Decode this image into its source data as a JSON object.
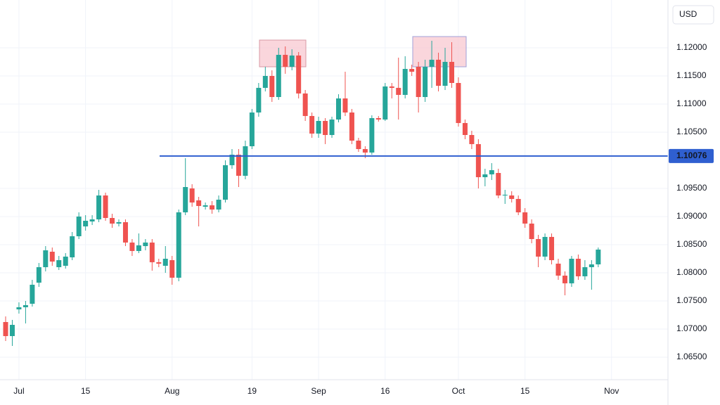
{
  "chart_data": {
    "type": "candlestick",
    "currency": "USD",
    "up_color": "#26a69a",
    "down_color": "#ef5350",
    "grid": true,
    "ylim": [
      1.061,
      1.1285
    ],
    "yticks": [
      {
        "value": 1.065,
        "label": "1.06500"
      },
      {
        "value": 1.07,
        "label": "1.07000"
      },
      {
        "value": 1.075,
        "label": "1.07500"
      },
      {
        "value": 1.08,
        "label": "1.08000"
      },
      {
        "value": 1.085,
        "label": "1.08500"
      },
      {
        "value": 1.09,
        "label": "1.09000"
      },
      {
        "value": 1.095,
        "label": "1.09500"
      },
      {
        "value": 1.105,
        "label": "1.10500"
      },
      {
        "value": 1.11,
        "label": "1.11000"
      },
      {
        "value": 1.115,
        "label": "1.11500"
      },
      {
        "value": 1.12,
        "label": "1.12000"
      }
    ],
    "level": {
      "value": 1.10076,
      "label": "1.10076",
      "color": "#2f5fd0"
    },
    "categories": [
      null,
      null,
      "Jul",
      null,
      null,
      null,
      null,
      null,
      null,
      null,
      null,
      null,
      "15",
      null,
      null,
      null,
      null,
      null,
      null,
      null,
      null,
      null,
      null,
      null,
      null,
      "Aug",
      null,
      null,
      null,
      null,
      null,
      null,
      null,
      null,
      null,
      null,
      null,
      "19",
      null,
      null,
      null,
      null,
      null,
      null,
      null,
      null,
      null,
      "Sep",
      null,
      null,
      null,
      null,
      null,
      null,
      null,
      null,
      null,
      "16",
      null,
      null,
      null,
      null,
      null,
      null,
      null,
      null,
      null,
      null,
      "Oct",
      null,
      null,
      null,
      null,
      null,
      null,
      null,
      null,
      null,
      "15",
      null,
      null,
      null,
      null,
      null,
      null,
      null,
      null,
      null,
      null,
      null,
      null,
      "Nov"
    ],
    "open": [
      1.07125,
      1.06875,
      1.0735,
      1.07388,
      1.0745,
      1.07825,
      1.081,
      1.08375,
      1.081,
      1.08125,
      1.08275,
      1.0865,
      1.08825,
      1.08913,
      1.0895,
      1.09375,
      1.08975,
      1.08875,
      1.089,
      1.08538,
      1.08388,
      1.08475,
      1.08538,
      1.08188,
      1.08125,
      1.08225,
      1.07913,
      1.09075,
      1.095,
      1.09288,
      1.09175,
      1.092,
      1.09125,
      1.093,
      1.09913,
      1.101,
      1.09725,
      1.1025,
      1.1085,
      1.11288,
      1.115,
      1.11125,
      1.11875,
      1.11663,
      1.11863,
      1.11188,
      1.10788,
      1.10475,
      1.107,
      1.1045,
      1.10725,
      1.111,
      1.1085,
      1.1035,
      1.102,
      1.10138,
      1.1075,
      1.10725,
      1.11313,
      1.11288,
      1.11163,
      1.11625,
      1.11663,
      1.11125,
      1.11663,
      1.11788,
      1.11325,
      1.1175,
      1.11375,
      1.10663,
      1.1045,
      1.10288,
      1.097,
      1.0975,
      1.09775,
      1.09375,
      1.09375,
      1.09313,
      1.09075,
      1.08875,
      1.086,
      1.08288,
      1.08638,
      1.08163,
      1.0795,
      1.07813,
      1.0825,
      1.07938,
      1.081,
      1.0815,
      null,
      null
    ],
    "high": [
      1.07225,
      1.07163,
      1.07475,
      1.075,
      1.07875,
      1.08175,
      1.08475,
      1.0845,
      1.083,
      1.0835,
      1.08725,
      1.09075,
      1.09025,
      1.09025,
      1.09475,
      1.09425,
      1.0905,
      1.0895,
      1.0895,
      1.086,
      1.087,
      1.086,
      1.086,
      1.0825,
      1.08475,
      1.083,
      1.09125,
      1.10038,
      1.09575,
      1.0935,
      1.0925,
      1.09275,
      1.09375,
      1.1,
      1.102,
      1.102,
      1.1035,
      1.10913,
      1.11375,
      1.11663,
      1.116,
      1.12,
      1.12025,
      1.11975,
      1.11925,
      1.1125,
      1.1085,
      1.10775,
      1.1075,
      1.10775,
      1.11175,
      1.11575,
      1.10913,
      1.104,
      1.1025,
      1.108,
      1.10788,
      1.11375,
      1.11375,
      1.11825,
      1.1185,
      1.117,
      1.1175,
      1.11788,
      1.12125,
      1.11913,
      1.12,
      1.121,
      1.11475,
      1.10725,
      1.10525,
      1.10375,
      1.0985,
      1.0995,
      1.0985,
      1.09475,
      1.0945,
      1.09375,
      1.0915,
      1.0895,
      1.08675,
      1.087,
      1.087,
      1.0825,
      1.08025,
      1.083,
      1.08325,
      1.08225,
      1.08225,
      1.0845,
      null,
      null
    ],
    "low": [
      1.06788,
      1.067,
      1.07275,
      1.071,
      1.074,
      1.0775,
      1.08025,
      1.08125,
      1.0805,
      1.08075,
      1.08225,
      1.086,
      1.0875,
      1.0885,
      1.089,
      1.08925,
      1.088,
      1.08825,
      1.08475,
      1.083,
      1.0835,
      1.084,
      1.08038,
      1.081,
      1.08,
      1.07788,
      1.0785,
      1.09025,
      1.09175,
      1.08825,
      1.09125,
      1.0905,
      1.09075,
      1.0925,
      1.0985,
      1.09525,
      1.09663,
      1.102,
      1.10775,
      1.11225,
      1.11038,
      1.11075,
      1.11538,
      1.116,
      1.111,
      1.107,
      1.104,
      1.104,
      1.10288,
      1.104,
      1.10675,
      1.10788,
      1.10288,
      1.1015,
      1.10038,
      1.101,
      1.10688,
      1.107,
      1.111,
      1.10725,
      1.111,
      1.115,
      1.1085,
      1.11038,
      1.11288,
      1.11225,
      1.1125,
      1.11288,
      1.106,
      1.10375,
      1.102,
      1.095,
      1.09538,
      1.0965,
      1.09325,
      1.09225,
      1.0925,
      1.09025,
      1.088,
      1.08525,
      1.081,
      1.08225,
      1.0815,
      1.07875,
      1.076,
      1.0775,
      1.07875,
      1.07875,
      1.077,
      1.081,
      null,
      null
    ],
    "close": [
      1.06875,
      1.07075,
      1.07388,
      1.07425,
      1.07788,
      1.081,
      1.084,
      1.082,
      1.08225,
      1.08288,
      1.0865,
      1.09,
      1.08925,
      1.0895,
      1.09375,
      1.08975,
      1.08875,
      1.089,
      1.08538,
      1.08388,
      1.08488,
      1.08538,
      1.08188,
      1.08163,
      1.0825,
      1.07913,
      1.09075,
      1.09525,
      1.0925,
      1.09188,
      1.092,
      1.09125,
      1.093,
      1.09913,
      1.101,
      1.09725,
      1.1025,
      1.1085,
      1.11288,
      1.115,
      1.11125,
      1.11875,
      1.11663,
      1.11863,
      1.11188,
      1.10788,
      1.10475,
      1.107,
      1.1045,
      1.10725,
      1.111,
      1.1085,
      1.1035,
      1.102,
      1.10138,
      1.1075,
      1.10725,
      1.11313,
      1.11288,
      1.11163,
      1.11625,
      1.11575,
      1.11125,
      1.11663,
      1.11788,
      1.11325,
      1.1175,
      1.11375,
      1.10663,
      1.1045,
      1.10288,
      1.097,
      1.0975,
      1.09825,
      1.09375,
      1.09388,
      1.09313,
      1.09075,
      1.08875,
      1.086,
      1.08288,
      1.08638,
      1.08225,
      1.0795,
      1.07813,
      1.0825,
      1.07938,
      1.081,
      1.0815,
      1.08413,
      null,
      null
    ]
  }
}
